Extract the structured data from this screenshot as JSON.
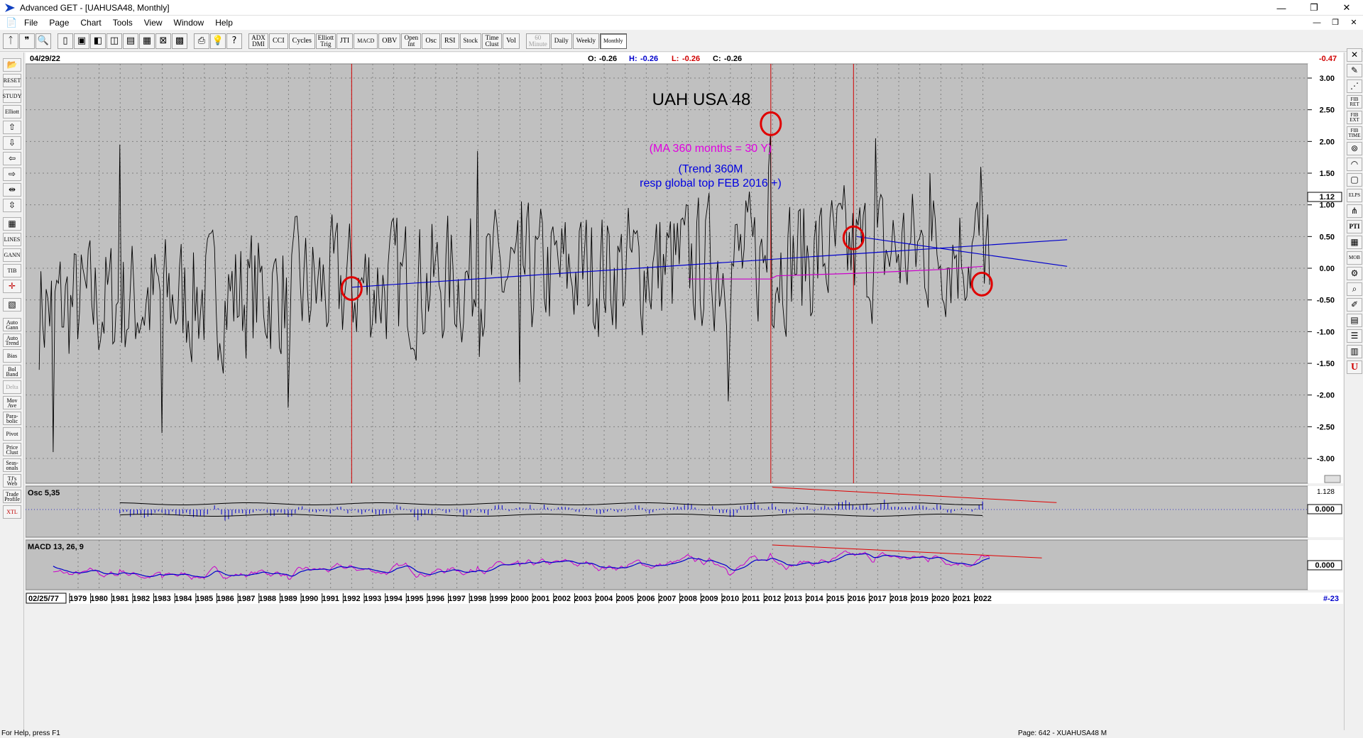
{
  "window": {
    "title": "Advanced GET - [UAHUSA48, Monthly]",
    "buttons": [
      "—",
      "❐",
      "✕"
    ]
  },
  "menu": {
    "items": [
      "File",
      "Page",
      "Chart",
      "Tools",
      "View",
      "Window",
      "Help"
    ],
    "mdi_buttons": [
      "—",
      "❐",
      "✕"
    ]
  },
  "toolbar": {
    "buttons": [
      {
        "label": "ADX DMI",
        "name": "adx-dmi-button"
      },
      {
        "label": "CCI",
        "name": "cci-button"
      },
      {
        "label": "Cycles",
        "name": "cycles-button"
      },
      {
        "label": "Elliott Trig",
        "name": "elliott-trig-button"
      },
      {
        "label": "JTI",
        "name": "jti-button"
      },
      {
        "label": "MACD",
        "name": "macd-button"
      },
      {
        "label": "OBV",
        "name": "obv-button"
      },
      {
        "label": "Open Int",
        "name": "open-int-button"
      },
      {
        "label": "Osc",
        "name": "osc-button"
      },
      {
        "label": "RSI",
        "name": "rsi-button"
      },
      {
        "label": "Stock",
        "name": "stock-button"
      },
      {
        "label": "Time Clust",
        "name": "time-clust-button"
      },
      {
        "label": "Vol",
        "name": "vol-button"
      }
    ],
    "periods": [
      {
        "label": "60 Minute",
        "name": "60-minute-button",
        "state": "disabled"
      },
      {
        "label": "Daily",
        "name": "daily-button",
        "state": "normal"
      },
      {
        "label": "Weekly",
        "name": "weekly-button",
        "state": "normal"
      },
      {
        "label": "Monthly",
        "name": "monthly-button",
        "state": "active"
      }
    ]
  },
  "leftbar": {
    "items": [
      {
        "label": "RESET",
        "name": "reset-button"
      },
      {
        "label": "STUDY",
        "name": "study-button"
      },
      {
        "label": "Elliott",
        "name": "elliott-button"
      },
      {
        "label": "LINES",
        "name": "lines-button"
      },
      {
        "label": "GANN",
        "name": "gann-button"
      },
      {
        "label": "TIB",
        "name": "tib-button"
      },
      {
        "label": "Auto Gann",
        "name": "auto-gann-button"
      },
      {
        "label": "Auto Trend",
        "name": "auto-trend-button"
      },
      {
        "label": "Bias",
        "name": "bias-button"
      },
      {
        "label": "Bol Band",
        "name": "bol-band-button"
      },
      {
        "label": "Delta",
        "name": "delta-button"
      },
      {
        "label": "Mov Ave",
        "name": "mov-ave-button"
      },
      {
        "label": "Para- bolic",
        "name": "parabolic-button"
      },
      {
        "label": "Pivot",
        "name": "pivot-button"
      },
      {
        "label": "Price Clust",
        "name": "price-clust-button"
      },
      {
        "label": "Seas- onals",
        "name": "seasonals-button"
      },
      {
        "label": "TJ's Web",
        "name": "tjs-web-button"
      },
      {
        "label": "Trade Profile",
        "name": "trade-profile-button"
      },
      {
        "label": "XTL",
        "name": "xtl-button"
      }
    ]
  },
  "rightbar": {
    "items": [
      {
        "label": "FIB RET",
        "name": "fib-ret-button"
      },
      {
        "label": "FIB EXT",
        "name": "fib-ext-button"
      },
      {
        "label": "FIB TIME",
        "name": "fib-time-button"
      },
      {
        "label": "ELPS",
        "name": "elps-button"
      },
      {
        "label": "PTI",
        "name": "pti-button"
      },
      {
        "label": "MOB",
        "name": "mob-button"
      }
    ]
  },
  "header": {
    "date": "04/29/22",
    "o_label": "O:",
    "o_value": "-0.26",
    "h_label": "H:",
    "h_value": "-0.26",
    "l_label": "L:",
    "l_value": "-0.26",
    "c_label": "C:",
    "c_value": "-0.26",
    "right_value": "-0.47"
  },
  "annotations": {
    "title": "UAH USA 48",
    "ma_note": "(MA 360 months = 30 Y)",
    "trend_note_1": "(Trend 360M",
    "trend_note_2": "resp global top FEB 2016 +)"
  },
  "price_axis": {
    "labels": [
      "3.00",
      "2.50",
      "2.00",
      "1.50",
      "1.00",
      "0.50",
      "0.00",
      "-0.50",
      "-1.00",
      "-1.50",
      "-2.00",
      "-2.50",
      "-3.00"
    ],
    "current_value": "1.12"
  },
  "osc_panel": {
    "label": "Osc 5,35",
    "zero_label": "0.000",
    "top_label": "1.128"
  },
  "macd_panel": {
    "label": "MACD 13, 26, 9",
    "zero_label": "0.000"
  },
  "time_axis": {
    "start_date": "02/25/77",
    "end_label": "#-23",
    "years": [
      "1979",
      "1980",
      "1981",
      "1982",
      "1983",
      "1984",
      "1985",
      "1986",
      "1987",
      "1988",
      "1989",
      "1990",
      "1991",
      "1992",
      "1993",
      "1994",
      "1995",
      "1996",
      "1997",
      "1998",
      "1999",
      "2000",
      "2001",
      "2002",
      "2003",
      "2004",
      "2005",
      "2006",
      "2007",
      "2008",
      "2009",
      "2010",
      "2011",
      "2012",
      "2013",
      "2014",
      "2015",
      "2016",
      "2017",
      "2018",
      "2019",
      "2020",
      "2021",
      "2022"
    ]
  },
  "status": {
    "help": "For Help, press F1",
    "page": "Page: 642 - XUAHUSA48 M"
  },
  "colors": {
    "chart_bg": "#c0c0c0",
    "price_line": "#000000",
    "trend_line": "#0000cc",
    "ma_line": "#cc00cc",
    "marker": "#e00000",
    "vline": "#d00000",
    "osc_bar": "#0000cc",
    "macd_line": "#0000cc",
    "macd_signal": "#cc00cc"
  },
  "chart_data": {
    "type": "line",
    "title": "UAH USA 48",
    "x_range": [
      1977.15,
      2022.33
    ],
    "ylim": [
      -3.3,
      3.3
    ],
    "markers": [
      {
        "x": 1992.0,
        "y": -0.32
      },
      {
        "x": 2011.92,
        "y": 2.28
      },
      {
        "x": 2015.85,
        "y": 0.48
      },
      {
        "x": 2021.95,
        "y": -0.25
      }
    ],
    "vertical_lines_x": [
      1992.0,
      2011.92,
      2015.85
    ],
    "trend_line": {
      "x": [
        1992.0,
        2026.0
      ],
      "y": [
        -0.3,
        0.45
      ]
    },
    "trend_line_2": {
      "x": [
        2016.0,
        2026.0
      ],
      "y": [
        0.5,
        0.03
      ]
    },
    "ma360": {
      "x": [
        2008.0,
        2011.9,
        2012.2,
        2016.0,
        2020.0,
        2022.0
      ],
      "y": [
        -0.17,
        -0.17,
        -0.12,
        -0.08,
        -0.02,
        0.03
      ]
    },
    "osc_trend": {
      "x": [
        2012.0,
        2025.5
      ],
      "y": [
        1.12,
        0.35
      ]
    },
    "macd_trend": {
      "x": [
        2012.0,
        2024.8
      ],
      "y": [
        1.0,
        0.35
      ]
    }
  }
}
